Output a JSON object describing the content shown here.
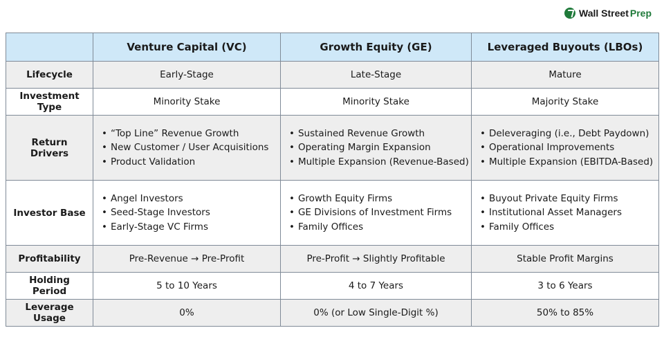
{
  "brand": {
    "name_part1": "Wall Street",
    "name_part2": "Prep",
    "icon": "wall-street-prep-logo-icon",
    "accent_color": "#1f7a3a"
  },
  "table": {
    "header_color": "#cfe8f8",
    "alt_row_color": "#eeeeee",
    "columns": [
      "Venture Capital (VC)",
      "Growth Equity (GE)",
      "Leveraged Buyouts (LBOs)"
    ],
    "rows": [
      {
        "label": "Lifecycle",
        "cells": [
          "Early-Stage",
          "Late-Stage",
          "Mature"
        ]
      },
      {
        "label": "Investment Type",
        "cells": [
          "Minority Stake",
          "Minority Stake",
          "Majority Stake"
        ]
      },
      {
        "label": "Return Drivers",
        "bullets": [
          [
            "“Top Line” Revenue Growth",
            "New Customer / User Acquisitions",
            "Product Validation"
          ],
          [
            "Sustained Revenue Growth",
            "Operating Margin Expansion",
            "Multiple Expansion (Revenue-Based)"
          ],
          [
            "Deleveraging (i.e., Debt Paydown)",
            "Operational Improvements",
            "Multiple Expansion (EBITDA-Based)"
          ]
        ]
      },
      {
        "label": "Investor Base",
        "bullets": [
          [
            "Angel Investors",
            "Seed-Stage Investors",
            "Early-Stage VC Firms"
          ],
          [
            "Growth Equity Firms",
            "GE Divisions of Investment Firms",
            "Family Offices"
          ],
          [
            "Buyout Private Equity Firms",
            "Institutional Asset Managers",
            "Family Offices"
          ]
        ]
      },
      {
        "label": "Profitability",
        "cells": [
          "Pre-Revenue → Pre-Profit",
          "Pre-Profit → Slightly Profitable",
          "Stable Profit Margins"
        ]
      },
      {
        "label": "Holding Period",
        "cells": [
          "5 to 10 Years",
          "4 to 7 Years",
          "3 to 6 Years"
        ]
      },
      {
        "label": "Leverage Usage",
        "cells": [
          "0%",
          "0% (or Low Single-Digit %)",
          "50% to 85%"
        ]
      }
    ]
  }
}
